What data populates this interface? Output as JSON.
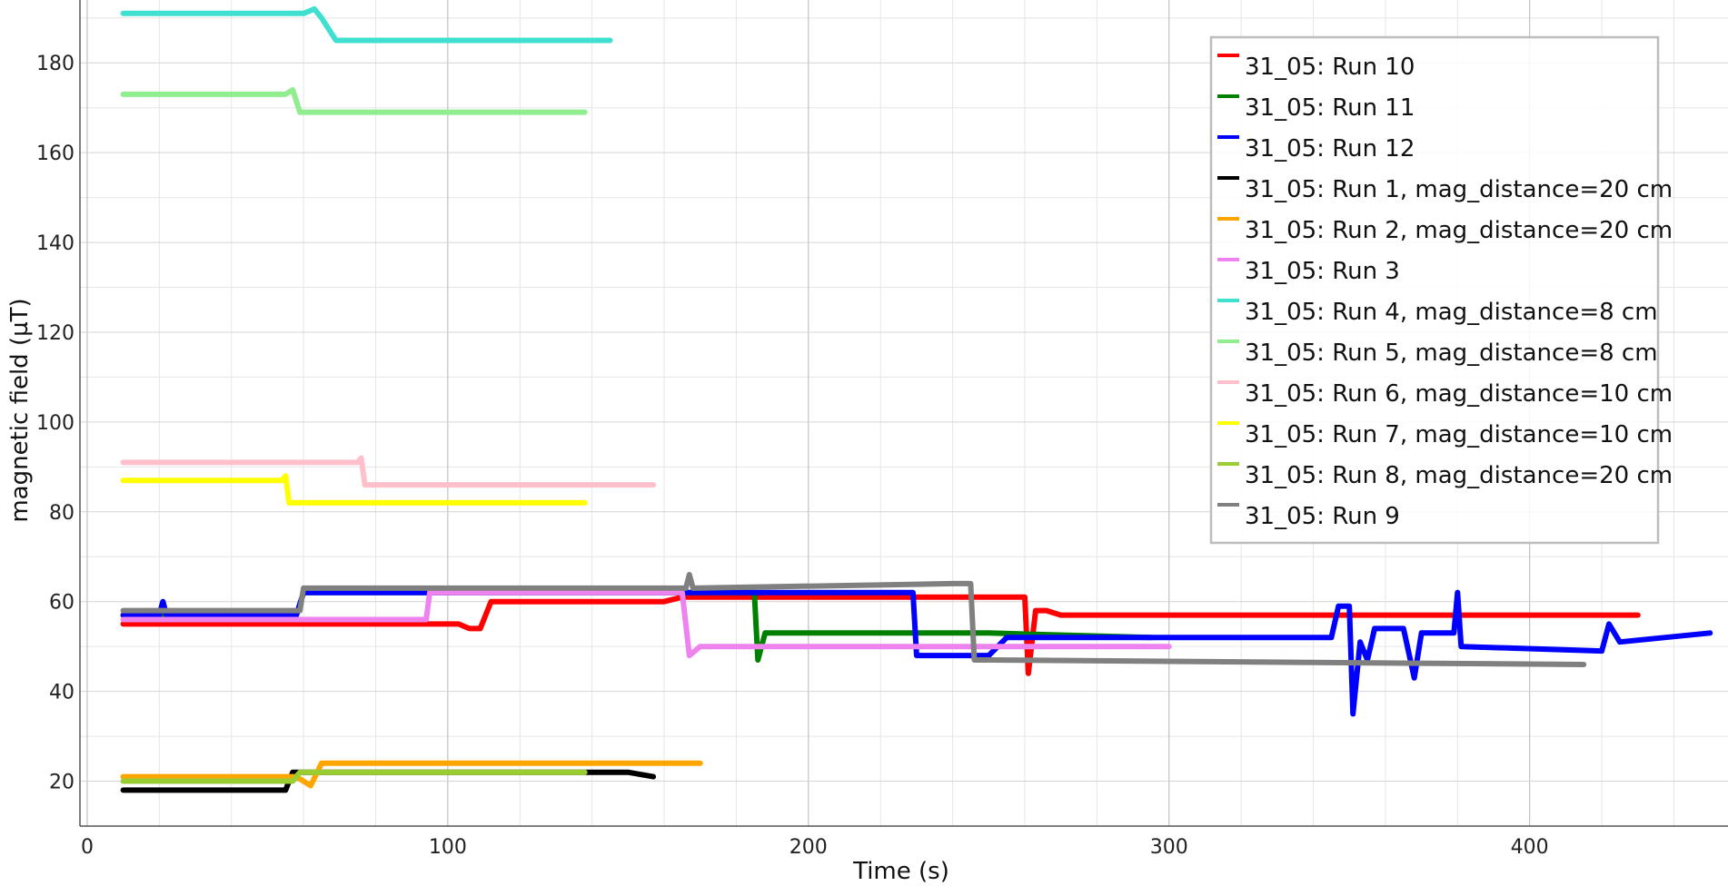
{
  "chart_data": {
    "type": "line",
    "xlabel": "Time (s)",
    "ylabel": "magnetic field (µT)",
    "xlim": [
      -2,
      455
    ],
    "ylim": [
      10,
      194
    ],
    "x_ticks": [
      0,
      100,
      200,
      300,
      400
    ],
    "y_ticks": [
      20,
      40,
      60,
      80,
      100,
      120,
      140,
      160,
      180
    ],
    "grid": true,
    "legend_position": "top-right",
    "series": [
      {
        "name": "31_05: Run 10",
        "color": "#ff0000",
        "points": [
          [
            10,
            55
          ],
          [
            103,
            55
          ],
          [
            106,
            54
          ],
          [
            109,
            54
          ],
          [
            112,
            60
          ],
          [
            160,
            60
          ],
          [
            165,
            61
          ],
          [
            258,
            61
          ],
          [
            260,
            61
          ],
          [
            261,
            44
          ],
          [
            263,
            58
          ],
          [
            266,
            58
          ],
          [
            270,
            57
          ],
          [
            430,
            57
          ]
        ]
      },
      {
        "name": "31_05: Run 11",
        "color": "#008000",
        "points": [
          [
            10,
            57
          ],
          [
            58,
            57
          ],
          [
            60,
            62
          ],
          [
            185,
            62
          ],
          [
            186,
            47
          ],
          [
            188,
            53
          ],
          [
            250,
            53
          ],
          [
            295,
            52
          ]
        ]
      },
      {
        "name": "31_05: Run 12",
        "color": "#0000ff",
        "points": [
          [
            10,
            57
          ],
          [
            20,
            57
          ],
          [
            21,
            60
          ],
          [
            22,
            57
          ],
          [
            58,
            57
          ],
          [
            60,
            62
          ],
          [
            229,
            62
          ],
          [
            230,
            48
          ],
          [
            250,
            48
          ],
          [
            255,
            52
          ],
          [
            345,
            52
          ],
          [
            347,
            59
          ],
          [
            350,
            59
          ],
          [
            351,
            35
          ],
          [
            353,
            51
          ],
          [
            355,
            47
          ],
          [
            357,
            54
          ],
          [
            365,
            54
          ],
          [
            368,
            43
          ],
          [
            370,
            53
          ],
          [
            379,
            53
          ],
          [
            380,
            62
          ],
          [
            381,
            50
          ],
          [
            420,
            49
          ],
          [
            422,
            55
          ],
          [
            425,
            51
          ],
          [
            450,
            53
          ]
        ]
      },
      {
        "name": "31_05: Run 1, mag_distance=20 cm",
        "color": "#000000",
        "points": [
          [
            10,
            18
          ],
          [
            55,
            18
          ],
          [
            57,
            22
          ],
          [
            60,
            22
          ],
          [
            150,
            22
          ],
          [
            157,
            21
          ]
        ]
      },
      {
        "name": "31_05: Run 2, mag_distance=20 cm",
        "color": "#ffa500",
        "points": [
          [
            10,
            21
          ],
          [
            58,
            21
          ],
          [
            62,
            19
          ],
          [
            65,
            24
          ],
          [
            170,
            24
          ]
        ]
      },
      {
        "name": "31_05: Run 3",
        "color": "#ee82ee",
        "points": [
          [
            10,
            56
          ],
          [
            94,
            56
          ],
          [
            95,
            62
          ],
          [
            165,
            62
          ],
          [
            167,
            48
          ],
          [
            170,
            50
          ],
          [
            300,
            50
          ]
        ]
      },
      {
        "name": "31_05: Run 4, mag_distance=8 cm",
        "color": "#40e0d0",
        "points": [
          [
            10,
            191
          ],
          [
            60,
            191
          ],
          [
            63,
            192
          ],
          [
            65,
            190
          ],
          [
            69,
            185
          ],
          [
            145,
            185
          ]
        ]
      },
      {
        "name": "31_05: Run 5, mag_distance=8 cm",
        "color": "#90ee90",
        "points": [
          [
            10,
            173
          ],
          [
            55,
            173
          ],
          [
            57,
            174
          ],
          [
            59,
            169
          ],
          [
            138,
            169
          ]
        ]
      },
      {
        "name": "31_05: Run 6, mag_distance=10 cm",
        "color": "#ffc0cb",
        "points": [
          [
            10,
            91
          ],
          [
            75,
            91
          ],
          [
            76,
            92
          ],
          [
            77,
            86
          ],
          [
            157,
            86
          ]
        ]
      },
      {
        "name": "31_05: Run 7, mag_distance=10 cm",
        "color": "#ffff00",
        "points": [
          [
            10,
            87
          ],
          [
            54,
            87
          ],
          [
            55,
            88
          ],
          [
            56,
            82
          ],
          [
            138,
            82
          ]
        ]
      },
      {
        "name": "31_05: Run 8, mag_distance=20 cm",
        "color": "#9acd32",
        "points": [
          [
            10,
            20
          ],
          [
            57,
            20
          ],
          [
            59,
            22
          ],
          [
            138,
            22
          ]
        ]
      },
      {
        "name": "31_05: Run 9",
        "color": "#808080",
        "points": [
          [
            10,
            58
          ],
          [
            59,
            58
          ],
          [
            60,
            63
          ],
          [
            166,
            63
          ],
          [
            167,
            66
          ],
          [
            168,
            63
          ],
          [
            240,
            64
          ],
          [
            245,
            64
          ],
          [
            246,
            47
          ],
          [
            250,
            47
          ],
          [
            415,
            46
          ]
        ]
      }
    ]
  }
}
